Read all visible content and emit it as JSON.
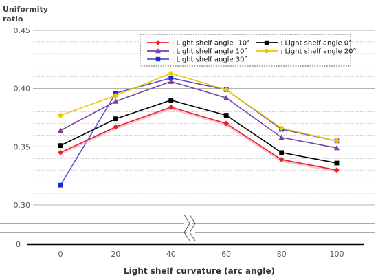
{
  "chart_data": {
    "type": "line",
    "title": "",
    "ylabel": [
      "Uniformity",
      "ratio"
    ],
    "xlabel": "Light shelf curvature (arc angle)",
    "x": [
      0,
      20,
      40,
      60,
      80,
      100
    ],
    "ylim": [
      0.3,
      0.45
    ],
    "yticks": [
      "0.45",
      "0.40",
      "0.35",
      "0.30"
    ],
    "y_axis_break": true,
    "y_zero_label": "0",
    "grid": true,
    "legend_position": "top-right",
    "series": [
      {
        "name": ": Light shelf angle -10°",
        "color": "#e8202a",
        "marker": "diamond",
        "shadow": "#f4b0c0",
        "values": [
          0.345,
          0.367,
          0.384,
          0.37,
          0.339,
          0.33
        ]
      },
      {
        "name": ": Light shelf angle 0°",
        "color": "#000000",
        "marker": "square",
        "values": [
          0.351,
          0.374,
          0.39,
          0.377,
          0.345,
          0.336
        ]
      },
      {
        "name": ": Light shelf angle 10°",
        "color": "#7b3fa0",
        "marker": "triangle",
        "values": [
          0.364,
          0.389,
          0.406,
          0.392,
          0.358,
          0.349
        ]
      },
      {
        "name": ": Light shelf angle 20°",
        "color": "#f5c400",
        "marker": "circle",
        "values": [
          0.377,
          0.394,
          0.413,
          0.399,
          0.366,
          0.355
        ]
      },
      {
        "name": ": Light shelf angle 30°",
        "color": "#5a50d8",
        "marker": "square",
        "marker_color": "#1030d0",
        "values": [
          0.317,
          0.396,
          0.409,
          0.399,
          0.365,
          0.355
        ]
      }
    ]
  }
}
